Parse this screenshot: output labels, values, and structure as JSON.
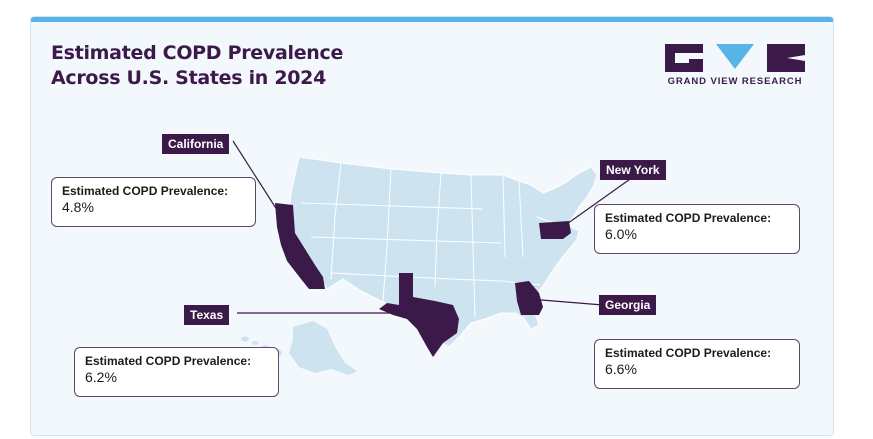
{
  "title": {
    "line1": "Estimated COPD Prevalence",
    "line2": "Across U.S. States in 2024"
  },
  "logo": {
    "text": "GRAND VIEW RESEARCH",
    "colors": {
      "dark": "#3b1a4a",
      "accent": "#58b3e6"
    }
  },
  "map": {
    "region": "United States (contiguous, Alaska, Hawaii)",
    "base_color": "#cde3f0",
    "highlight_color": "#3b1a4a"
  },
  "states": [
    {
      "name": "California",
      "label": "Estimated COPD Prevalence:",
      "value": "4.8%"
    },
    {
      "name": "New York",
      "label": "Estimated COPD Prevalence:",
      "value": "6.0%"
    },
    {
      "name": "Texas",
      "label": "Estimated COPD Prevalence:",
      "value": "6.2%"
    },
    {
      "name": "Georgia",
      "label": "Estimated COPD Prevalence:",
      "value": "6.6%"
    }
  ]
}
